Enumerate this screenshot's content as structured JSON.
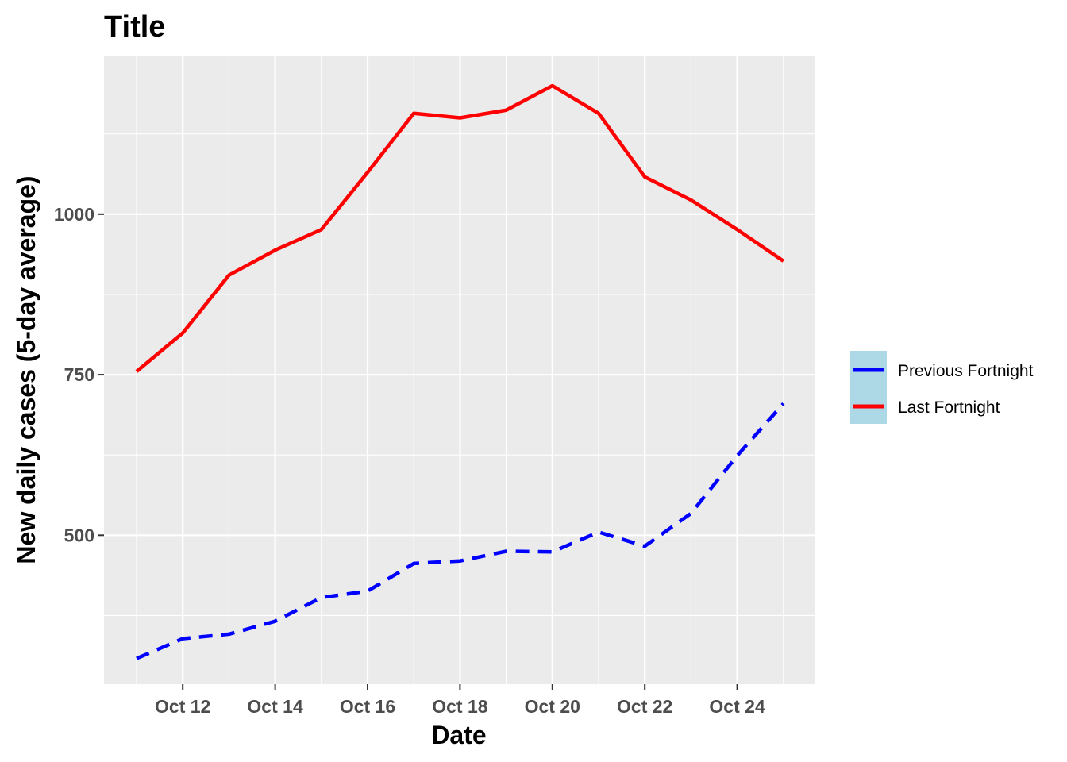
{
  "chart_data": {
    "type": "line",
    "title": "Title",
    "xlabel": "Date",
    "ylabel": "New daily cases (5-day average)",
    "x": [
      "Oct 11",
      "Oct 12",
      "Oct 13",
      "Oct 14",
      "Oct 15",
      "Oct 16",
      "Oct 17",
      "Oct 18",
      "Oct 19",
      "Oct 20",
      "Oct 21",
      "Oct 22",
      "Oct 23",
      "Oct 24",
      "Oct 25"
    ],
    "xticks": [
      "Oct 12",
      "Oct 14",
      "Oct 16",
      "Oct 18",
      "Oct 20",
      "Oct 22",
      "Oct 24"
    ],
    "yticks": [
      500,
      750,
      1000
    ],
    "ylim": [
      268,
      1247
    ],
    "grid": true,
    "legend_position": "right",
    "series": [
      {
        "name": "Previous Fortnight",
        "color": "#0000ff",
        "dash": "dashed",
        "values": [
          308,
          339,
          346,
          366,
          403,
          413,
          456,
          460,
          475,
          474,
          505,
          483,
          534,
          624,
          705
        ]
      },
      {
        "name": "Last Fortnight",
        "color": "#ff0000",
        "dash": "solid",
        "values": [
          755,
          815,
          905,
          944,
          976,
          1065,
          1157,
          1150,
          1162,
          1200,
          1157,
          1058,
          1022,
          976,
          927
        ]
      }
    ],
    "legend": {
      "background": "#add8e6",
      "order": [
        "Previous Fortnight",
        "Last Fortnight"
      ]
    }
  }
}
